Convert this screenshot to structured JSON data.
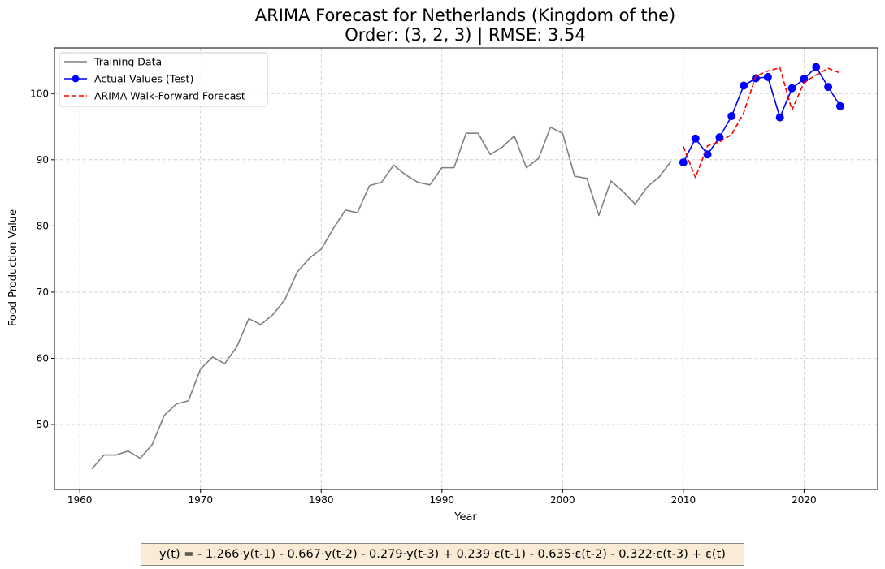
{
  "chart_data": {
    "type": "line",
    "title": "ARIMA Forecast for Netherlands (Kingdom of the)",
    "subtitle": "Order: (3, 2, 3) | RMSE: 3.54",
    "xlabel": "Year",
    "ylabel": "Food Production Value",
    "xlim": [
      1957.9,
      2026.1
    ],
    "ylim": [
      40.2,
      106.9
    ],
    "xticks": [
      1960,
      1970,
      1980,
      1990,
      2000,
      2010,
      2020
    ],
    "yticks": [
      50,
      60,
      70,
      80,
      90,
      100
    ],
    "grid": true,
    "legend_position": "upper-left",
    "series": [
      {
        "name": "Training Data",
        "style": "solid",
        "color": "#808080",
        "x": [
          1961,
          1962,
          1963,
          1964,
          1965,
          1966,
          1967,
          1968,
          1969,
          1970,
          1971,
          1972,
          1973,
          1974,
          1975,
          1976,
          1977,
          1978,
          1979,
          1980,
          1981,
          1982,
          1983,
          1984,
          1985,
          1986,
          1987,
          1988,
          1989,
          1990,
          1991,
          1992,
          1993,
          1994,
          1995,
          1996,
          1997,
          1998,
          1999,
          2000,
          2001,
          2002,
          2003,
          2004,
          2005,
          2006,
          2007,
          2008,
          2009
        ],
        "values": [
          43.3,
          45.4,
          45.4,
          46.0,
          44.9,
          47.0,
          51.4,
          53.1,
          53.6,
          58.4,
          60.2,
          59.2,
          61.7,
          66.0,
          65.1,
          66.6,
          68.9,
          73.0,
          75.1,
          76.5,
          79.6,
          82.4,
          82.0,
          86.1,
          86.6,
          89.2,
          87.7,
          86.6,
          86.2,
          88.8,
          88.8,
          94.0,
          94.0,
          90.8,
          91.9,
          93.6,
          88.8,
          90.2,
          94.9,
          94.0,
          87.5,
          87.2,
          81.6,
          86.8,
          85.2,
          83.3,
          85.9,
          87.4,
          89.8
        ]
      },
      {
        "name": "Actual Values (Test)",
        "style": "solid-markers",
        "color": "#0000ff",
        "x": [
          2010,
          2011,
          2012,
          2013,
          2014,
          2015,
          2016,
          2017,
          2018,
          2019,
          2020,
          2021,
          2022,
          2023
        ],
        "values": [
          89.6,
          93.2,
          90.8,
          93.4,
          96.6,
          101.2,
          102.3,
          102.5,
          96.4,
          100.8,
          102.2,
          104.0,
          101.0,
          98.1
        ]
      },
      {
        "name": "ARIMA Walk-Forward Forecast",
        "style": "dashed",
        "color": "#ff0000",
        "x": [
          2010,
          2011,
          2012,
          2013,
          2014,
          2015,
          2016,
          2017,
          2018,
          2019,
          2020,
          2021,
          2022,
          2023
        ],
        "values": [
          92.0,
          87.3,
          92.1,
          92.7,
          93.8,
          97.1,
          102.6,
          103.4,
          103.9,
          97.5,
          101.7,
          102.8,
          103.8,
          103.1
        ]
      }
    ]
  },
  "equation": "y(t) = - 1.266·y(t-1) - 0.667·y(t-2) - 0.279·y(t-3) + 0.239·ε(t-1) - 0.635·ε(t-2) - 0.322·ε(t-3) + ε(t)"
}
